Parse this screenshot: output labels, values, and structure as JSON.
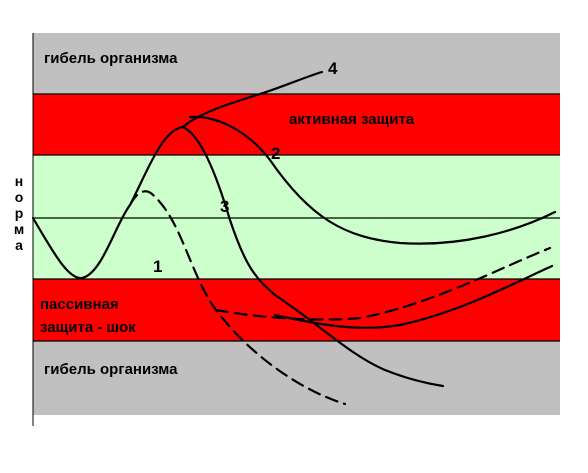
{
  "zones": {
    "death_top": {
      "label": "гибель организма",
      "color": "#c0c0c0"
    },
    "active_defense": {
      "label": "активная защита",
      "color": "#ff0000"
    },
    "norm": {
      "color": "#ccffcc"
    },
    "passive_defense": {
      "label_line1": "пассивная",
      "label_line2": "защита  - шок",
      "color": "#ff0000"
    },
    "death_bottom": {
      "label": "гибель организма",
      "color": "#c0c0c0"
    }
  },
  "axis": {
    "norm_label": "норма"
  },
  "curves": {
    "curve_1": {
      "label": "1",
      "style": "dashed"
    },
    "curve_2": {
      "label": "2",
      "style": "solid"
    },
    "curve_3": {
      "label": "3",
      "style": "solid"
    },
    "curve_4": {
      "label": "4",
      "style": "solid"
    }
  }
}
